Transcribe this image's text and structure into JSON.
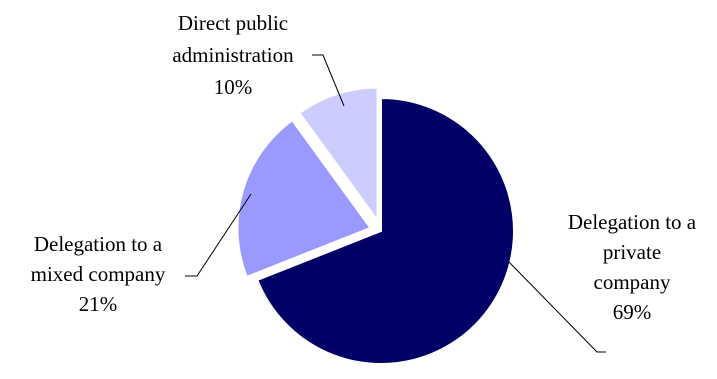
{
  "chart_data": {
    "type": "pie",
    "title": "",
    "slices": [
      {
        "label_lines": [
          "Delegation to a",
          "private",
          "company"
        ],
        "value": 69,
        "value_label": "69%",
        "color": "#000066"
      },
      {
        "label_lines": [
          "Delegation to a",
          "mixed company"
        ],
        "value": 21,
        "value_label": "21%",
        "color": "#9999ff"
      },
      {
        "label_lines": [
          "Direct public",
          "administration"
        ],
        "value": 10,
        "value_label": "10%",
        "color": "#ccccff"
      }
    ],
    "start_angle": "12 o'clock",
    "direction": "clockwise",
    "exploded_slices": [
      "Delegation to a mixed company",
      "Direct public administration"
    ],
    "legend": "none",
    "leader_lines": true
  }
}
